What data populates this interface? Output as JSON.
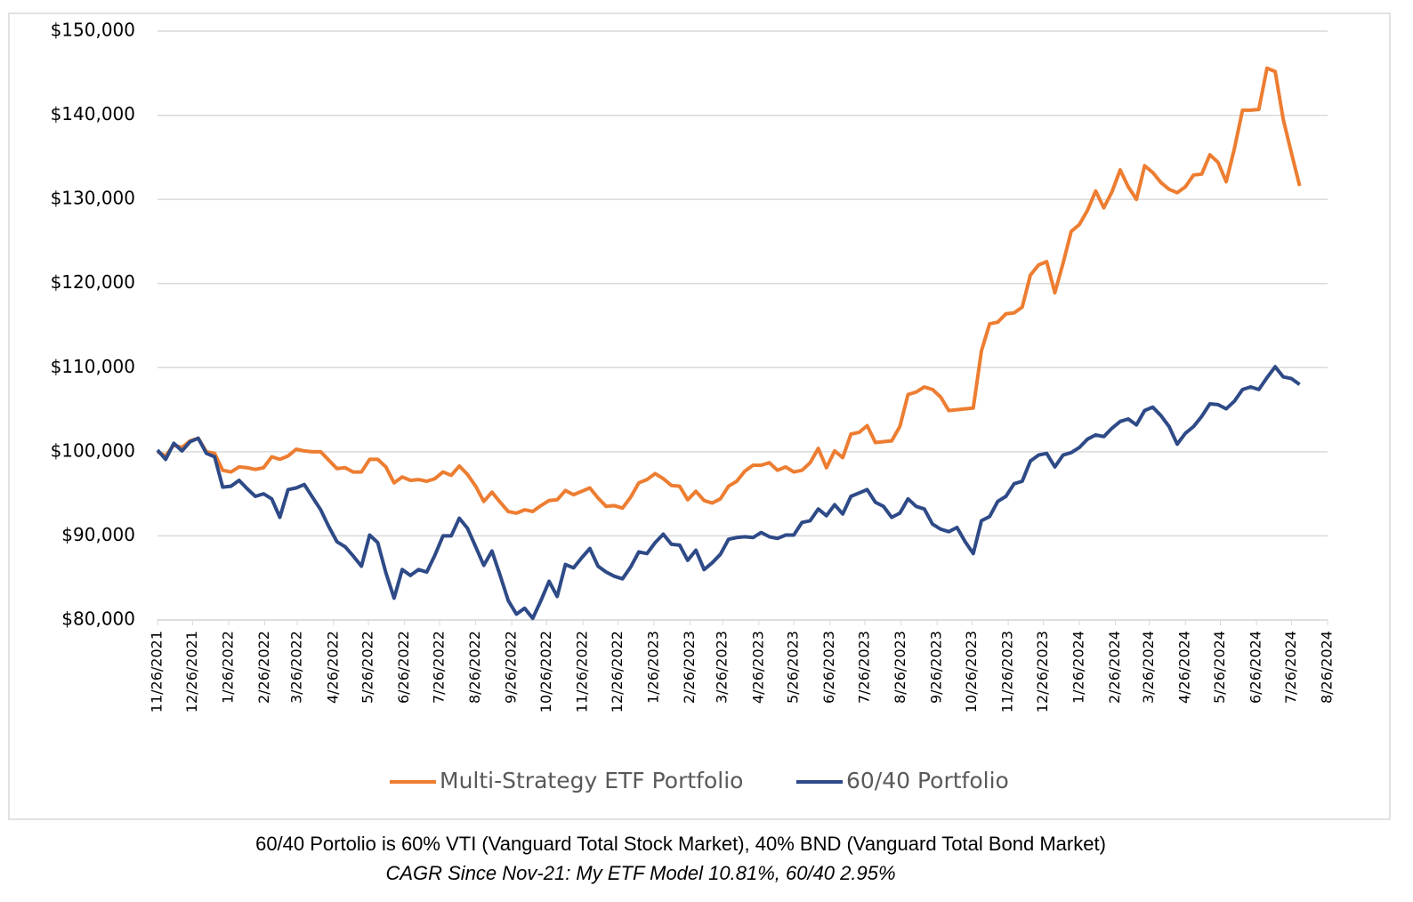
{
  "chart_data": {
    "type": "line",
    "x": [
      "2021-11-26",
      "2021-12-03",
      "2021-12-10",
      "2021-12-17",
      "2021-12-24",
      "2021-12-31",
      "2022-01-07",
      "2022-01-14",
      "2022-01-21",
      "2022-01-28",
      "2022-02-04",
      "2022-02-11",
      "2022-02-18",
      "2022-02-25",
      "2022-03-04",
      "2022-03-11",
      "2022-03-18",
      "2022-03-25",
      "2022-04-01",
      "2022-04-08",
      "2022-04-15",
      "2022-04-22",
      "2022-04-29",
      "2022-05-06",
      "2022-05-13",
      "2022-05-20",
      "2022-05-27",
      "2022-06-03",
      "2022-06-10",
      "2022-06-17",
      "2022-06-24",
      "2022-07-01",
      "2022-07-08",
      "2022-07-15",
      "2022-07-22",
      "2022-07-29",
      "2022-08-05",
      "2022-08-12",
      "2022-08-19",
      "2022-08-26",
      "2022-09-02",
      "2022-09-09",
      "2022-09-16",
      "2022-09-23",
      "2022-09-30",
      "2022-10-07",
      "2022-10-14",
      "2022-10-21",
      "2022-10-28",
      "2022-11-04",
      "2022-11-11",
      "2022-11-18",
      "2022-11-25",
      "2022-12-02",
      "2022-12-09",
      "2022-12-16",
      "2022-12-23",
      "2022-12-30",
      "2023-01-06",
      "2023-01-13",
      "2023-01-20",
      "2023-01-27",
      "2023-02-03",
      "2023-02-10",
      "2023-02-17",
      "2023-02-24",
      "2023-03-03",
      "2023-03-10",
      "2023-03-17",
      "2023-03-24",
      "2023-03-31",
      "2023-04-07",
      "2023-04-14",
      "2023-04-21",
      "2023-04-28",
      "2023-05-05",
      "2023-05-12",
      "2023-05-19",
      "2023-05-26",
      "2023-06-02",
      "2023-06-09",
      "2023-06-16",
      "2023-06-23",
      "2023-06-30",
      "2023-07-07",
      "2023-07-14",
      "2023-07-21",
      "2023-07-28",
      "2023-08-04",
      "2023-08-11",
      "2023-08-18",
      "2023-08-25",
      "2023-09-01",
      "2023-09-08",
      "2023-09-15",
      "2023-09-22",
      "2023-09-29",
      "2023-10-06",
      "2023-10-13",
      "2023-10-20",
      "2023-10-27",
      "2023-11-03",
      "2023-11-10",
      "2023-11-17",
      "2023-11-24",
      "2023-12-01",
      "2023-12-08",
      "2023-12-15",
      "2023-12-22",
      "2023-12-29",
      "2024-01-05",
      "2024-01-12",
      "2024-01-19",
      "2024-01-26",
      "2024-02-02",
      "2024-02-09",
      "2024-02-16",
      "2024-02-23",
      "2024-03-01",
      "2024-03-08",
      "2024-03-15",
      "2024-03-22",
      "2024-03-29",
      "2024-04-05",
      "2024-04-12",
      "2024-04-19",
      "2024-04-26",
      "2024-05-03",
      "2024-05-10",
      "2024-05-17",
      "2024-05-24",
      "2024-05-31",
      "2024-06-07",
      "2024-06-14",
      "2024-06-21",
      "2024-06-28",
      "2024-07-05",
      "2024-07-12",
      "2024-07-19",
      "2024-07-26",
      "2024-08-02"
    ],
    "series": [
      {
        "name": "Multi-Strategy ETF Portfolio",
        "color": "#ED7D31",
        "values": [
          100000,
          99500,
          100800,
          100500,
          101300,
          101600,
          100000,
          99800,
          97800,
          97600,
          98200,
          98100,
          97900,
          98100,
          99400,
          99100,
          99500,
          100300,
          100100,
          100000,
          100000,
          99000,
          98000,
          98100,
          97600,
          97600,
          99100,
          99100,
          98200,
          96300,
          97000,
          96600,
          96700,
          96500,
          96800,
          97600,
          97200,
          98300,
          97300,
          95900,
          94100,
          95200,
          94000,
          92900,
          92700,
          93100,
          92900,
          93600,
          94200,
          94300,
          95400,
          94900,
          95300,
          95700,
          94500,
          93500,
          93600,
          93300,
          94600,
          96300,
          96700,
          97400,
          96800,
          96000,
          95900,
          94300,
          95300,
          94200,
          93900,
          94400,
          95900,
          96500,
          97700,
          98400,
          98400,
          98700,
          97800,
          98200,
          97600,
          97800,
          98700,
          100400,
          98100,
          100100,
          99300,
          102100,
          102300,
          103100,
          101100,
          101200,
          101300,
          103000,
          106800,
          107100,
          107700,
          107400,
          106500,
          104900,
          105000,
          105100,
          105200,
          112000,
          115200,
          115400,
          116400,
          116500,
          117200,
          121000,
          122200,
          122600,
          118900,
          122400,
          126200,
          127000,
          128700,
          131000,
          129000,
          130900,
          133500,
          131500,
          130000,
          134000,
          133200,
          132000,
          131200,
          130800,
          131500,
          132900,
          133000,
          135300,
          134400,
          132100,
          136000,
          140600,
          140600,
          140700,
          145600,
          145200,
          139500,
          135500,
          131600
        ]
      },
      {
        "name": "60/40 Portfolio",
        "color": "#2E4A87",
        "values": [
          100200,
          99100,
          101000,
          100100,
          101200,
          101600,
          99800,
          99400,
          95800,
          95900,
          96600,
          95600,
          94700,
          95000,
          94400,
          92200,
          95500,
          95700,
          96100,
          94600,
          93100,
          91100,
          89300,
          88700,
          87600,
          86400,
          90100,
          89200,
          85600,
          82600,
          86000,
          85300,
          86000,
          85700,
          87700,
          90000,
          90000,
          92100,
          90900,
          88700,
          86500,
          88200,
          85300,
          82300,
          80700,
          81400,
          80200,
          82300,
          84600,
          82800,
          86600,
          86200,
          87400,
          88500,
          86400,
          85700,
          85200,
          84900,
          86300,
          88100,
          87900,
          89200,
          90200,
          89000,
          88900,
          87100,
          88300,
          86000,
          86800,
          87800,
          89600,
          89800,
          89900,
          89800,
          90400,
          89900,
          89700,
          90100,
          90100,
          91600,
          91800,
          93200,
          92400,
          93700,
          92600,
          94700,
          95100,
          95500,
          94000,
          93500,
          92200,
          92700,
          94400,
          93500,
          93200,
          91400,
          90800,
          90500,
          91000,
          89300,
          87900,
          91800,
          92300,
          94100,
          94700,
          96200,
          96500,
          98900,
          99600,
          99800,
          98200,
          99600,
          99900,
          100500,
          101500,
          102000,
          101800,
          102800,
          103600,
          103900,
          103200,
          104900,
          105300,
          104300,
          103000,
          100900,
          102200,
          103000,
          104200,
          105700,
          105600,
          105100,
          106000,
          107400,
          107700,
          107400,
          108800,
          110100,
          108900,
          108700,
          108000
        ]
      }
    ],
    "xlim": [
      "2021-11-26",
      "2024-08-26"
    ],
    "xticks": [
      {
        "value": "2021-11-26",
        "label": "11/26/2021"
      },
      {
        "value": "2021-12-26",
        "label": "12/26/2021"
      },
      {
        "value": "2022-01-26",
        "label": "1/26/2022"
      },
      {
        "value": "2022-02-26",
        "label": "2/26/2022"
      },
      {
        "value": "2022-03-26",
        "label": "3/26/2022"
      },
      {
        "value": "2022-04-26",
        "label": "4/26/2022"
      },
      {
        "value": "2022-05-26",
        "label": "5/26/2022"
      },
      {
        "value": "2022-06-26",
        "label": "6/26/2022"
      },
      {
        "value": "2022-07-26",
        "label": "7/26/2022"
      },
      {
        "value": "2022-08-26",
        "label": "8/26/2022"
      },
      {
        "value": "2022-09-26",
        "label": "9/26/2022"
      },
      {
        "value": "2022-10-26",
        "label": "10/26/2022"
      },
      {
        "value": "2022-11-26",
        "label": "11/26/2022"
      },
      {
        "value": "2022-12-26",
        "label": "12/26/2022"
      },
      {
        "value": "2023-01-26",
        "label": "1/26/2023"
      },
      {
        "value": "2023-02-26",
        "label": "2/26/2023"
      },
      {
        "value": "2023-03-26",
        "label": "3/26/2023"
      },
      {
        "value": "2023-04-26",
        "label": "4/26/2023"
      },
      {
        "value": "2023-05-26",
        "label": "5/26/2023"
      },
      {
        "value": "2023-06-26",
        "label": "6/26/2023"
      },
      {
        "value": "2023-07-26",
        "label": "7/26/2023"
      },
      {
        "value": "2023-08-26",
        "label": "8/26/2023"
      },
      {
        "value": "2023-09-26",
        "label": "9/26/2023"
      },
      {
        "value": "2023-10-26",
        "label": "10/26/2023"
      },
      {
        "value": "2023-11-26",
        "label": "11/26/2023"
      },
      {
        "value": "2023-12-26",
        "label": "12/26/2023"
      },
      {
        "value": "2024-01-26",
        "label": "1/26/2024"
      },
      {
        "value": "2024-02-26",
        "label": "2/26/2024"
      },
      {
        "value": "2024-03-26",
        "label": "3/26/2024"
      },
      {
        "value": "2024-04-26",
        "label": "4/26/2024"
      },
      {
        "value": "2024-05-26",
        "label": "5/26/2024"
      },
      {
        "value": "2024-06-26",
        "label": "6/26/2024"
      },
      {
        "value": "2024-07-26",
        "label": "7/26/2024"
      },
      {
        "value": "2024-08-26",
        "label": "8/26/2024"
      }
    ],
    "ylim": [
      80000,
      150000
    ],
    "yticks": [
      {
        "value": 80000,
        "label": "$80,000"
      },
      {
        "value": 90000,
        "label": "$90,000"
      },
      {
        "value": 100000,
        "label": "$100,000"
      },
      {
        "value": 110000,
        "label": "$110,000"
      },
      {
        "value": 120000,
        "label": "$120,000"
      },
      {
        "value": 130000,
        "label": "$130,000"
      },
      {
        "value": 140000,
        "label": "$140,000"
      },
      {
        "value": 150000,
        "label": "$150,000"
      }
    ],
    "grid": true,
    "legend": "bottom",
    "notes": [
      "60/40 Portolio is 60% VTI (Vanguard Total Stock Market), 40% BND (Vanguard Total Bond Market)",
      "CAGR Since Nov-21: My ETF Model 10.81%, 60/40 2.95%"
    ]
  }
}
